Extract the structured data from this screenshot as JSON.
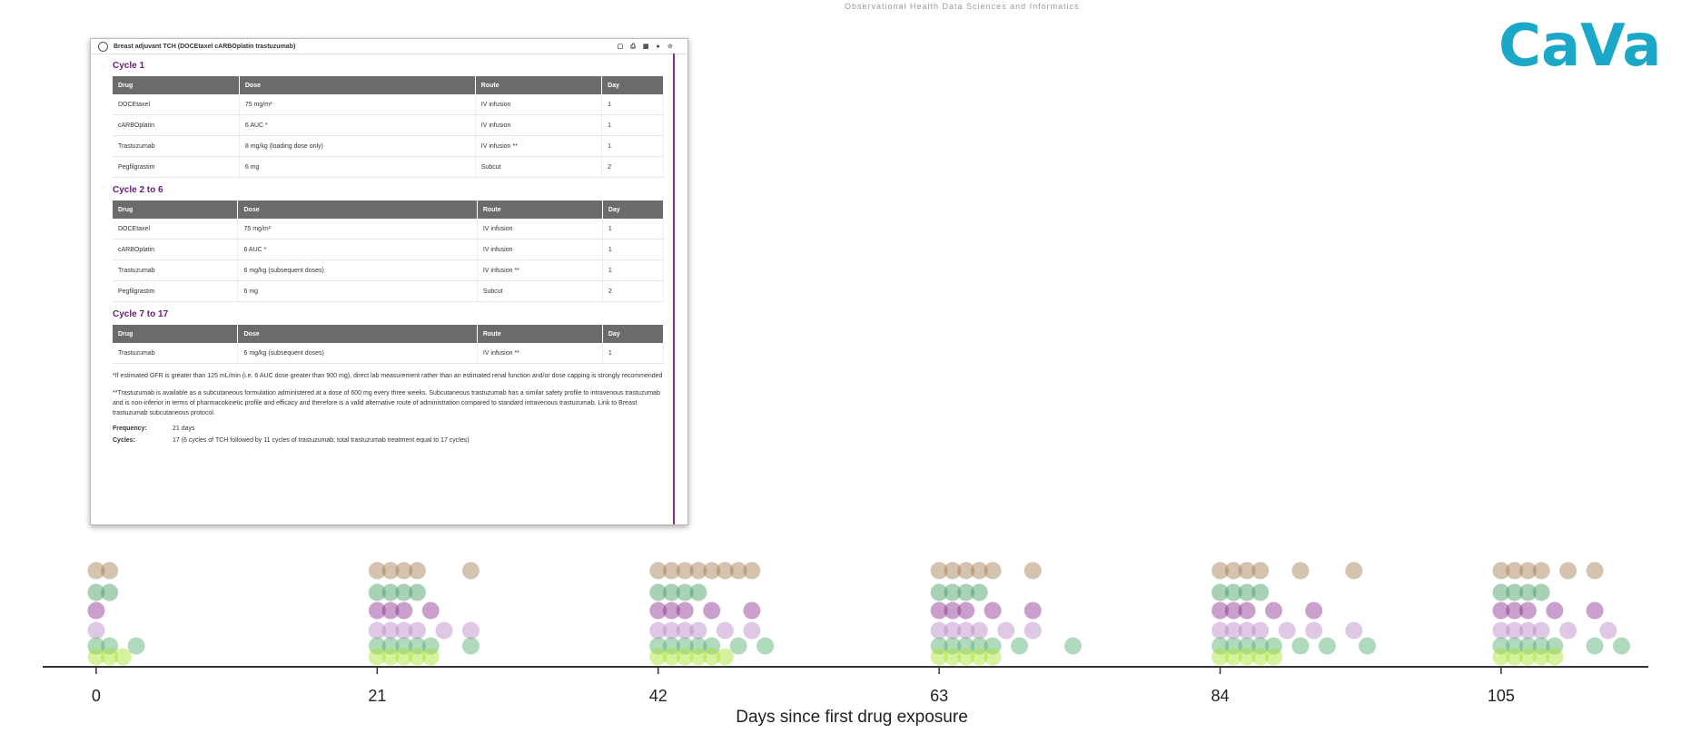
{
  "header": "Observational Health Data Sciences and Informatics",
  "logo": "CaVa",
  "document": {
    "title": "Breast adjuvant TCH (DOCEtaxel cARBOplatin trastuzumab)",
    "sections": [
      {
        "heading": "Cycle 1",
        "columns": [
          "Drug",
          "Dose",
          "Route",
          "Day"
        ],
        "rows": [
          [
            "DOCEtaxel",
            "75 mg/m²",
            "IV infusion",
            "1"
          ],
          [
            "cARBOplatin",
            "6 AUC *",
            "IV infusion",
            "1"
          ],
          [
            "Trastuzumab",
            "8 mg/kg (loading dose only)",
            "IV infusion **",
            "1"
          ],
          [
            "Pegfilgrastim",
            "6 mg",
            "Subcut",
            "2"
          ]
        ]
      },
      {
        "heading": "Cycle 2 to 6",
        "columns": [
          "Drug",
          "Dose",
          "Route",
          "Day"
        ],
        "rows": [
          [
            "DOCEtaxel",
            "75 mg/m²",
            "IV infusion",
            "1"
          ],
          [
            "cARBOplatin",
            "6 AUC *",
            "IV infusion",
            "1"
          ],
          [
            "Trastuzumab",
            "6 mg/kg (subsequent doses)",
            "IV infusion **",
            "1"
          ],
          [
            "Pegfilgrastim",
            "6 mg",
            "Subcut",
            "2"
          ]
        ]
      },
      {
        "heading": "Cycle 7 to 17",
        "columns": [
          "Drug",
          "Dose",
          "Route",
          "Day"
        ],
        "rows": [
          [
            "Trastuzumab",
            "6 mg/kg (subsequent doses)",
            "IV infusion **",
            "1"
          ]
        ]
      }
    ],
    "notes": [
      "*If estimated GFR is greater than 125 mL/min (i.e. 6 AUC dose greater than 900 mg), direct lab measurement rather than an estimated renal function and/or dose capping is strongly recommended",
      "**Trastuzumab is available as a subcutaneous formulation administered at a dose of 600 mg every three weeks. Subcutaneous trastuzumab has a similar safety profile to intravenous trastuzumab and is non-inferior in terms of pharmacokinetic profile and efficacy and therefore is a valid alternative route of administration compared to standard intravenous trastuzumab. Link to Breast trastuzumab subcutaneous protocol."
    ],
    "fields": [
      [
        "Frequency:",
        "21 days"
      ],
      [
        "Cycles:",
        "17 (6 cycles of TCH followed by 11 cycles of trastuzumab; total trastuzumab treatment equal to 17 cycles)"
      ]
    ]
  },
  "chart_data": {
    "type": "scatter",
    "xlabel": "Days since first drug exposure",
    "xlim": [
      -4,
      116
    ],
    "xticks": [
      0,
      21,
      42,
      63,
      84,
      105
    ],
    "series": [
      {
        "color": "#a07a4e",
        "x": [
          0,
          1,
          21,
          22,
          23,
          24,
          28,
          42,
          43,
          44,
          45,
          46,
          47,
          48,
          49,
          63,
          64,
          65,
          66,
          67,
          70,
          84,
          85,
          86,
          87,
          90,
          94,
          105,
          106,
          107,
          108,
          110,
          112
        ]
      },
      {
        "color": "#3f9a5e",
        "x": [
          0,
          1,
          21,
          22,
          23,
          24,
          42,
          43,
          44,
          45,
          63,
          64,
          65,
          66,
          84,
          85,
          86,
          87,
          105,
          106,
          107,
          108
        ]
      },
      {
        "color": "#8a2a8c",
        "x": [
          0,
          21,
          22,
          23,
          25,
          42,
          43,
          44,
          46,
          49,
          63,
          64,
          65,
          67,
          70,
          84,
          85,
          86,
          88,
          91,
          105,
          106,
          107,
          109,
          112
        ]
      },
      {
        "color": "#b985c0",
        "x": [
          0,
          21,
          22,
          23,
          24,
          26,
          28,
          42,
          43,
          44,
          45,
          47,
          49,
          63,
          64,
          65,
          66,
          68,
          70,
          84,
          85,
          86,
          87,
          89,
          91,
          94,
          105,
          106,
          107,
          108,
          110,
          113
        ]
      },
      {
        "color": "#4fae6a",
        "x": [
          0,
          1,
          3,
          21,
          22,
          23,
          24,
          25,
          28,
          42,
          43,
          44,
          45,
          46,
          48,
          50,
          63,
          64,
          65,
          66,
          67,
          69,
          73,
          84,
          85,
          86,
          87,
          88,
          90,
          92,
          95,
          105,
          106,
          107,
          108,
          109,
          112,
          114
        ]
      },
      {
        "color": "#a6e22a",
        "x": [
          0,
          1,
          2,
          21,
          22,
          23,
          24,
          25,
          42,
          43,
          44,
          45,
          46,
          47,
          63,
          64,
          65,
          66,
          67,
          84,
          85,
          86,
          87,
          88,
          105,
          106,
          107,
          108,
          109
        ]
      }
    ]
  }
}
